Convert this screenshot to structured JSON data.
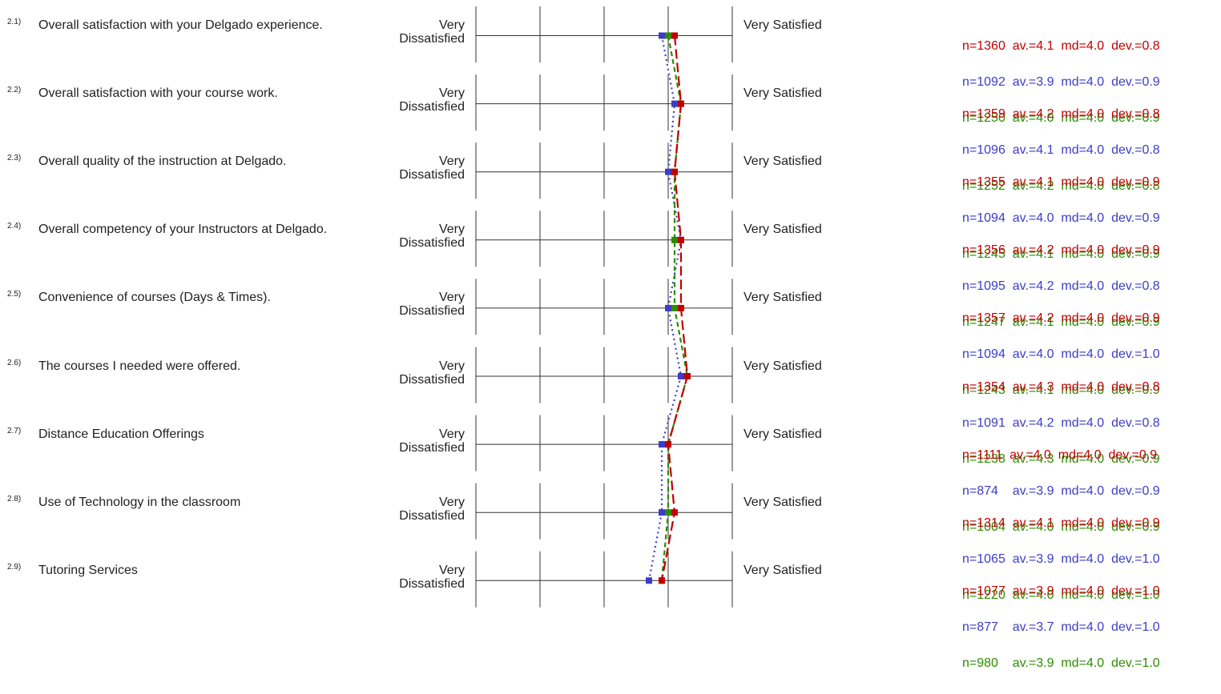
{
  "colors": {
    "series1": "#c00000",
    "series2": "#3c3cc8",
    "series3": "#2e8b00",
    "grid": "#333333"
  },
  "scale": {
    "left_label": "Very Dissatisfied",
    "right_label": "Very Satisfied",
    "min": 1,
    "max": 5
  },
  "chart_data": {
    "type": "line",
    "scale_range": [
      1,
      5
    ],
    "legend": "none",
    "categories": [
      "Overall satisfaction with your Delgado experience.",
      "Overall satisfaction with your course work.",
      "Overall quality of the instruction at Delgado.",
      "Overall competency of your Instructors at Delgado.",
      "Convenience of courses (Days & Times).",
      "The courses I needed were offered.",
      "Distance Education Offerings",
      "Use of Technology in the classroom",
      "Tutoring Services"
    ],
    "series": [
      {
        "color": "#c00000",
        "dash": "long-dash",
        "values": [
          4.1,
          4.2,
          4.1,
          4.2,
          4.2,
          4.3,
          4.0,
          4.1,
          3.9
        ]
      },
      {
        "color": "#3c3cc8",
        "dash": "dotted",
        "values": [
          3.9,
          4.1,
          4.0,
          4.2,
          4.0,
          4.2,
          3.9,
          3.9,
          3.7
        ]
      },
      {
        "color": "#2e8b00",
        "dash": "dashed",
        "values": [
          4.0,
          4.2,
          4.1,
          4.1,
          4.1,
          4.3,
          4.0,
          4.0,
          3.9
        ]
      }
    ]
  },
  "items": [
    {
      "num": "2.1)",
      "text": "Overall satisfaction with your Delgado experience.",
      "stats": [
        "n=1360  av.=4.1  md=4.0  dev.=0.8",
        "n=1092  av.=3.9  md=4.0  dev.=0.9",
        "n=1250  av.=4.0  md=4.0  dev.=0.9"
      ]
    },
    {
      "num": "2.2)",
      "text": "Overall satisfaction with your course work.",
      "stats": [
        "n=1359  av.=4.2  md=4.0  dev.=0.8",
        "n=1096  av.=4.1  md=4.0  dev.=0.8",
        "n=1252  av.=4.2  md=4.0  dev.=0.8"
      ]
    },
    {
      "num": "2.3)",
      "text": "Overall quality of the instruction at Delgado.",
      "stats": [
        "n=1355  av.=4.1  md=4.0  dev.=0.9",
        "n=1094  av.=4.0  md=4.0  dev.=0.9",
        "n=1245  av.=4.1  md=4.0  dev.=0.9"
      ]
    },
    {
      "num": "2.4)",
      "text": "Overall competency of your Instructors at Delgado.",
      "stats": [
        "n=1356  av.=4.2  md=4.0  dev.=0.9",
        "n=1095  av.=4.2  md=4.0  dev.=0.8",
        "n=1247  av.=4.1  md=4.0  dev.=0.9"
      ]
    },
    {
      "num": "2.5)",
      "text": "Convenience of courses (Days & Times).",
      "stats": [
        "n=1357  av.=4.2  md=4.0  dev.=0.9",
        "n=1094  av.=4.0  md=4.0  dev.=1.0",
        "n=1243  av.=4.1  md=4.0  dev.=0.9"
      ]
    },
    {
      "num": "2.6)",
      "text": "The courses I needed were offered.",
      "stats": [
        "n=1354  av.=4.3  md=4.0  dev.=0.8",
        "n=1091  av.=4.2  md=4.0  dev.=0.8",
        "n=1238  av.=4.3  md=4.0  dev.=0.9"
      ]
    },
    {
      "num": "2.7)",
      "text": "Distance Education Offerings",
      "stats": [
        "n=1111  av.=4.0  md=4.0  dev.=0.9",
        "n=874    av.=3.9  md=4.0  dev.=0.9",
        "n=1004  av.=4.0  md=4.0  dev.=0.9"
      ]
    },
    {
      "num": "2.8)",
      "text": "Use of Technology in the classroom",
      "stats": [
        "n=1314  av.=4.1  md=4.0  dev.=0.9",
        "n=1065  av.=3.9  md=4.0  dev.=1.0",
        "n=1220  av.=4.0  md=4.0  dev.=1.0"
      ]
    },
    {
      "num": "2.9)",
      "text": "Tutoring Services",
      "stats": [
        "n=1077  av.=3.9  md=4.0  dev.=1.0",
        "n=877    av.=3.7  md=4.0  dev.=1.0",
        "n=980    av.=3.9  md=4.0  dev.=1.0"
      ]
    }
  ]
}
